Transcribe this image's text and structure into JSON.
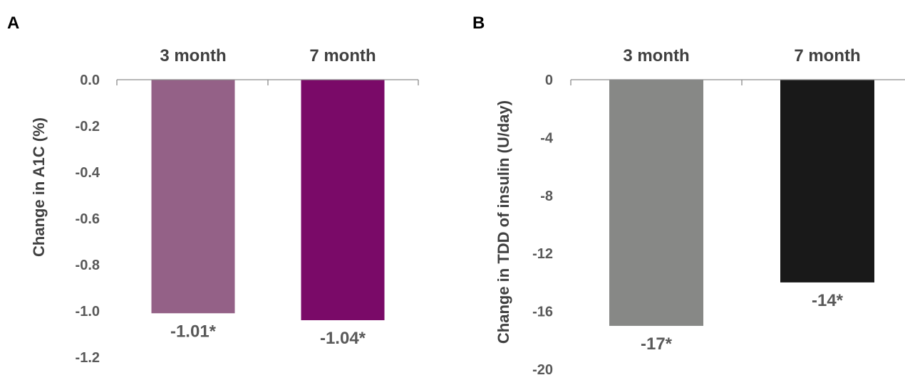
{
  "chart_data": [
    {
      "panel": "A",
      "type": "bar",
      "categories": [
        "3 month",
        "7 month"
      ],
      "values": [
        -1.01,
        -1.04
      ],
      "data_labels": [
        "-1.01*",
        "-1.04*"
      ],
      "colors": [
        "#946187",
        "#7a0a68"
      ],
      "ylabel": "Change in A1C (%)",
      "ylim": [
        -1.2,
        0.0
      ],
      "yticks": [
        0.0,
        -0.2,
        -0.4,
        -0.6,
        -0.8,
        -1.0,
        -1.2
      ],
      "ytick_labels": [
        "0.0",
        "-0.2",
        "-0.4",
        "-0.6",
        "-0.8",
        "-1.0",
        "-1.2"
      ],
      "grid": false,
      "category_labels_position": "top"
    },
    {
      "panel": "B",
      "type": "bar",
      "categories": [
        "3 month",
        "7 month"
      ],
      "values": [
        -17,
        -14
      ],
      "data_labels": [
        "-17*",
        "-14*"
      ],
      "colors": [
        "#878886",
        "#191919"
      ],
      "ylabel": "Change in TDD of insulin (U/day)",
      "ylim": [
        -20,
        0
      ],
      "yticks": [
        0,
        -4,
        -8,
        -12,
        -16,
        -20
      ],
      "ytick_labels": [
        "0",
        "-4",
        "-8",
        "-12",
        "-16",
        "-20"
      ],
      "grid": false,
      "category_labels_position": "top"
    }
  ]
}
